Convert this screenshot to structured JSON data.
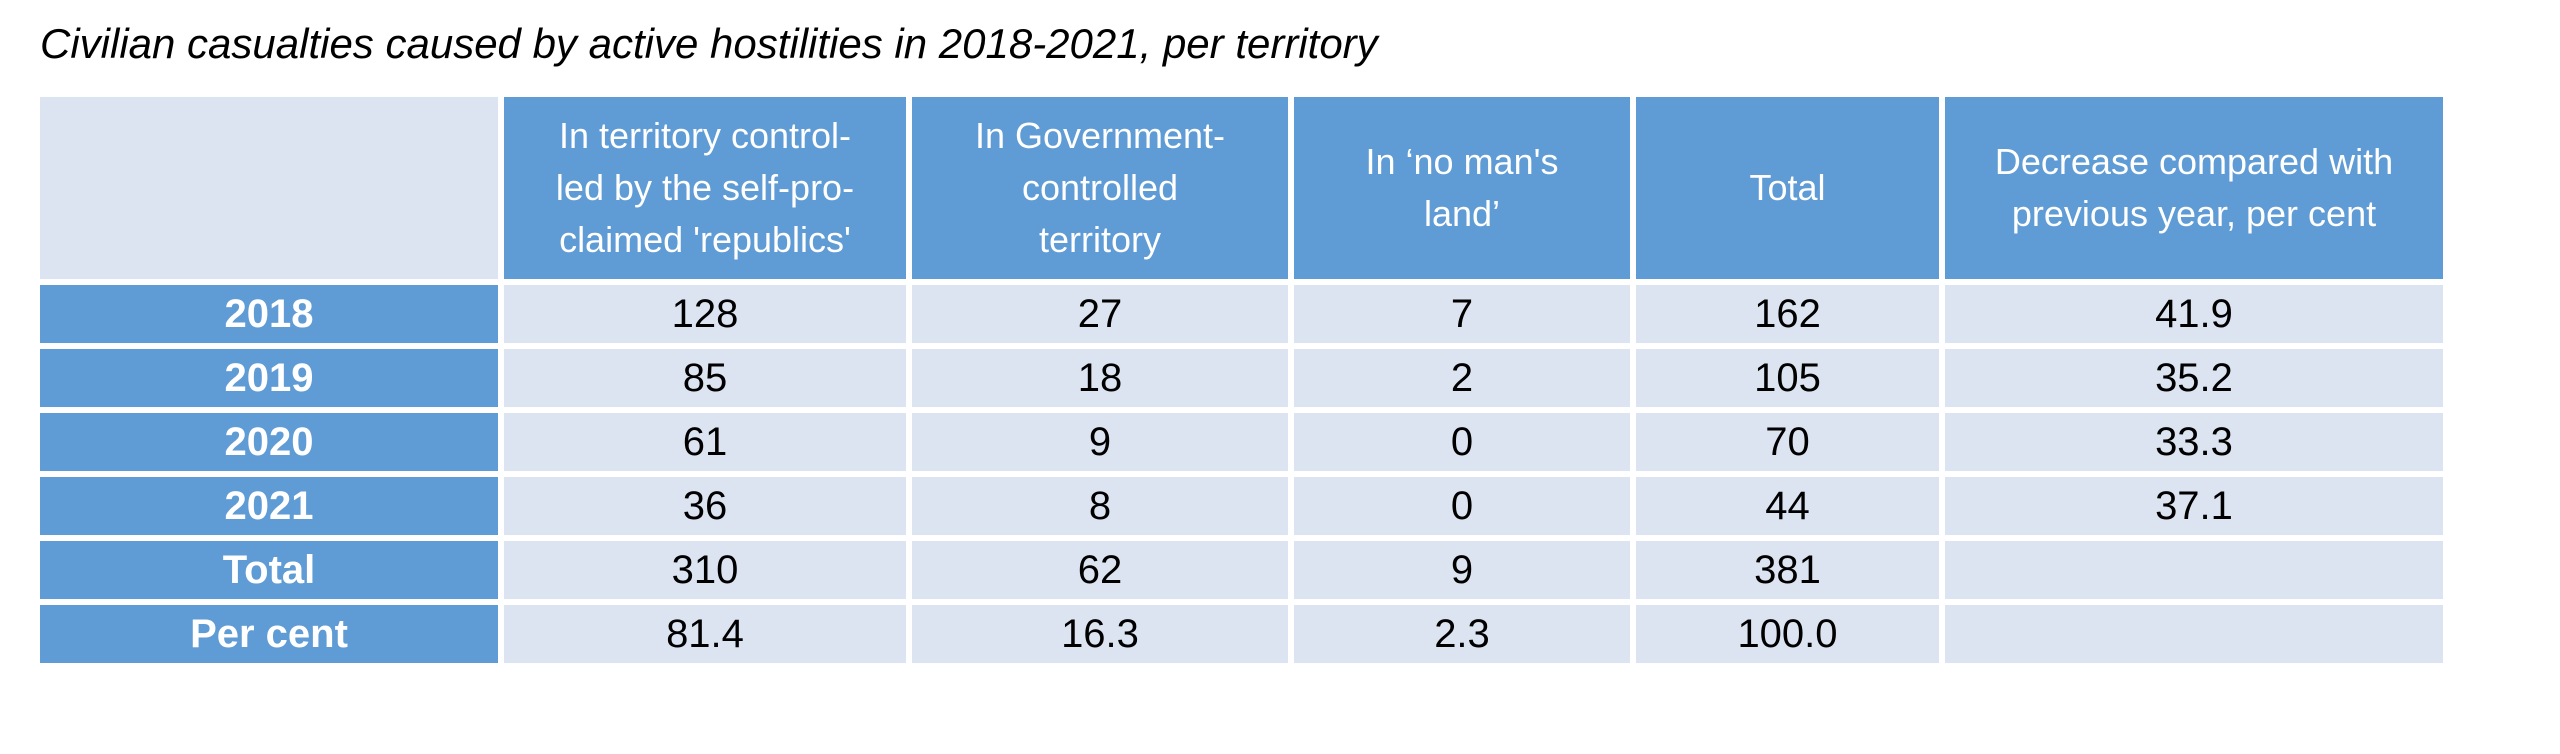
{
  "chart_data": {
    "type": "table",
    "title": "Civilian casualties caused by active hostilities in 2018-2021, per territory",
    "columns": [
      "",
      "In territory control- led by the self-pro- claimed 'republics'",
      "In Government- controlled territory",
      "In ‘no man's land’",
      "Total",
      "Decrease compared with previous year, per cent"
    ],
    "header_lines": [
      [],
      [
        "In territory control-",
        "led by the self-pro-",
        "claimed 'republics'"
      ],
      [
        "In Government-",
        "controlled",
        "territory"
      ],
      [
        "In ‘no man's",
        "land’"
      ],
      [
        "Total"
      ],
      [
        "Decrease compared with",
        "previous year, per cent"
      ]
    ],
    "rows": [
      {
        "label": "2018",
        "values": [
          "128",
          "27",
          "7",
          "162",
          "41.9"
        ]
      },
      {
        "label": "2019",
        "values": [
          "85",
          "18",
          "2",
          "105",
          "35.2"
        ]
      },
      {
        "label": "2020",
        "values": [
          "61",
          "9",
          "0",
          "70",
          "33.3"
        ]
      },
      {
        "label": "2021",
        "values": [
          "36",
          "8",
          "0",
          "44",
          "37.1"
        ]
      },
      {
        "label": "Total",
        "values": [
          "310",
          "62",
          "9",
          "381",
          ""
        ]
      },
      {
        "label": "Per cent",
        "values": [
          "81.4",
          "16.3",
          "2.3",
          "100.0",
          ""
        ]
      }
    ]
  },
  "colors": {
    "header_bg": "#5f9bd4",
    "cell_bg": "#dce3f1",
    "header_text": "#ffffff",
    "cell_text": "#000000"
  }
}
